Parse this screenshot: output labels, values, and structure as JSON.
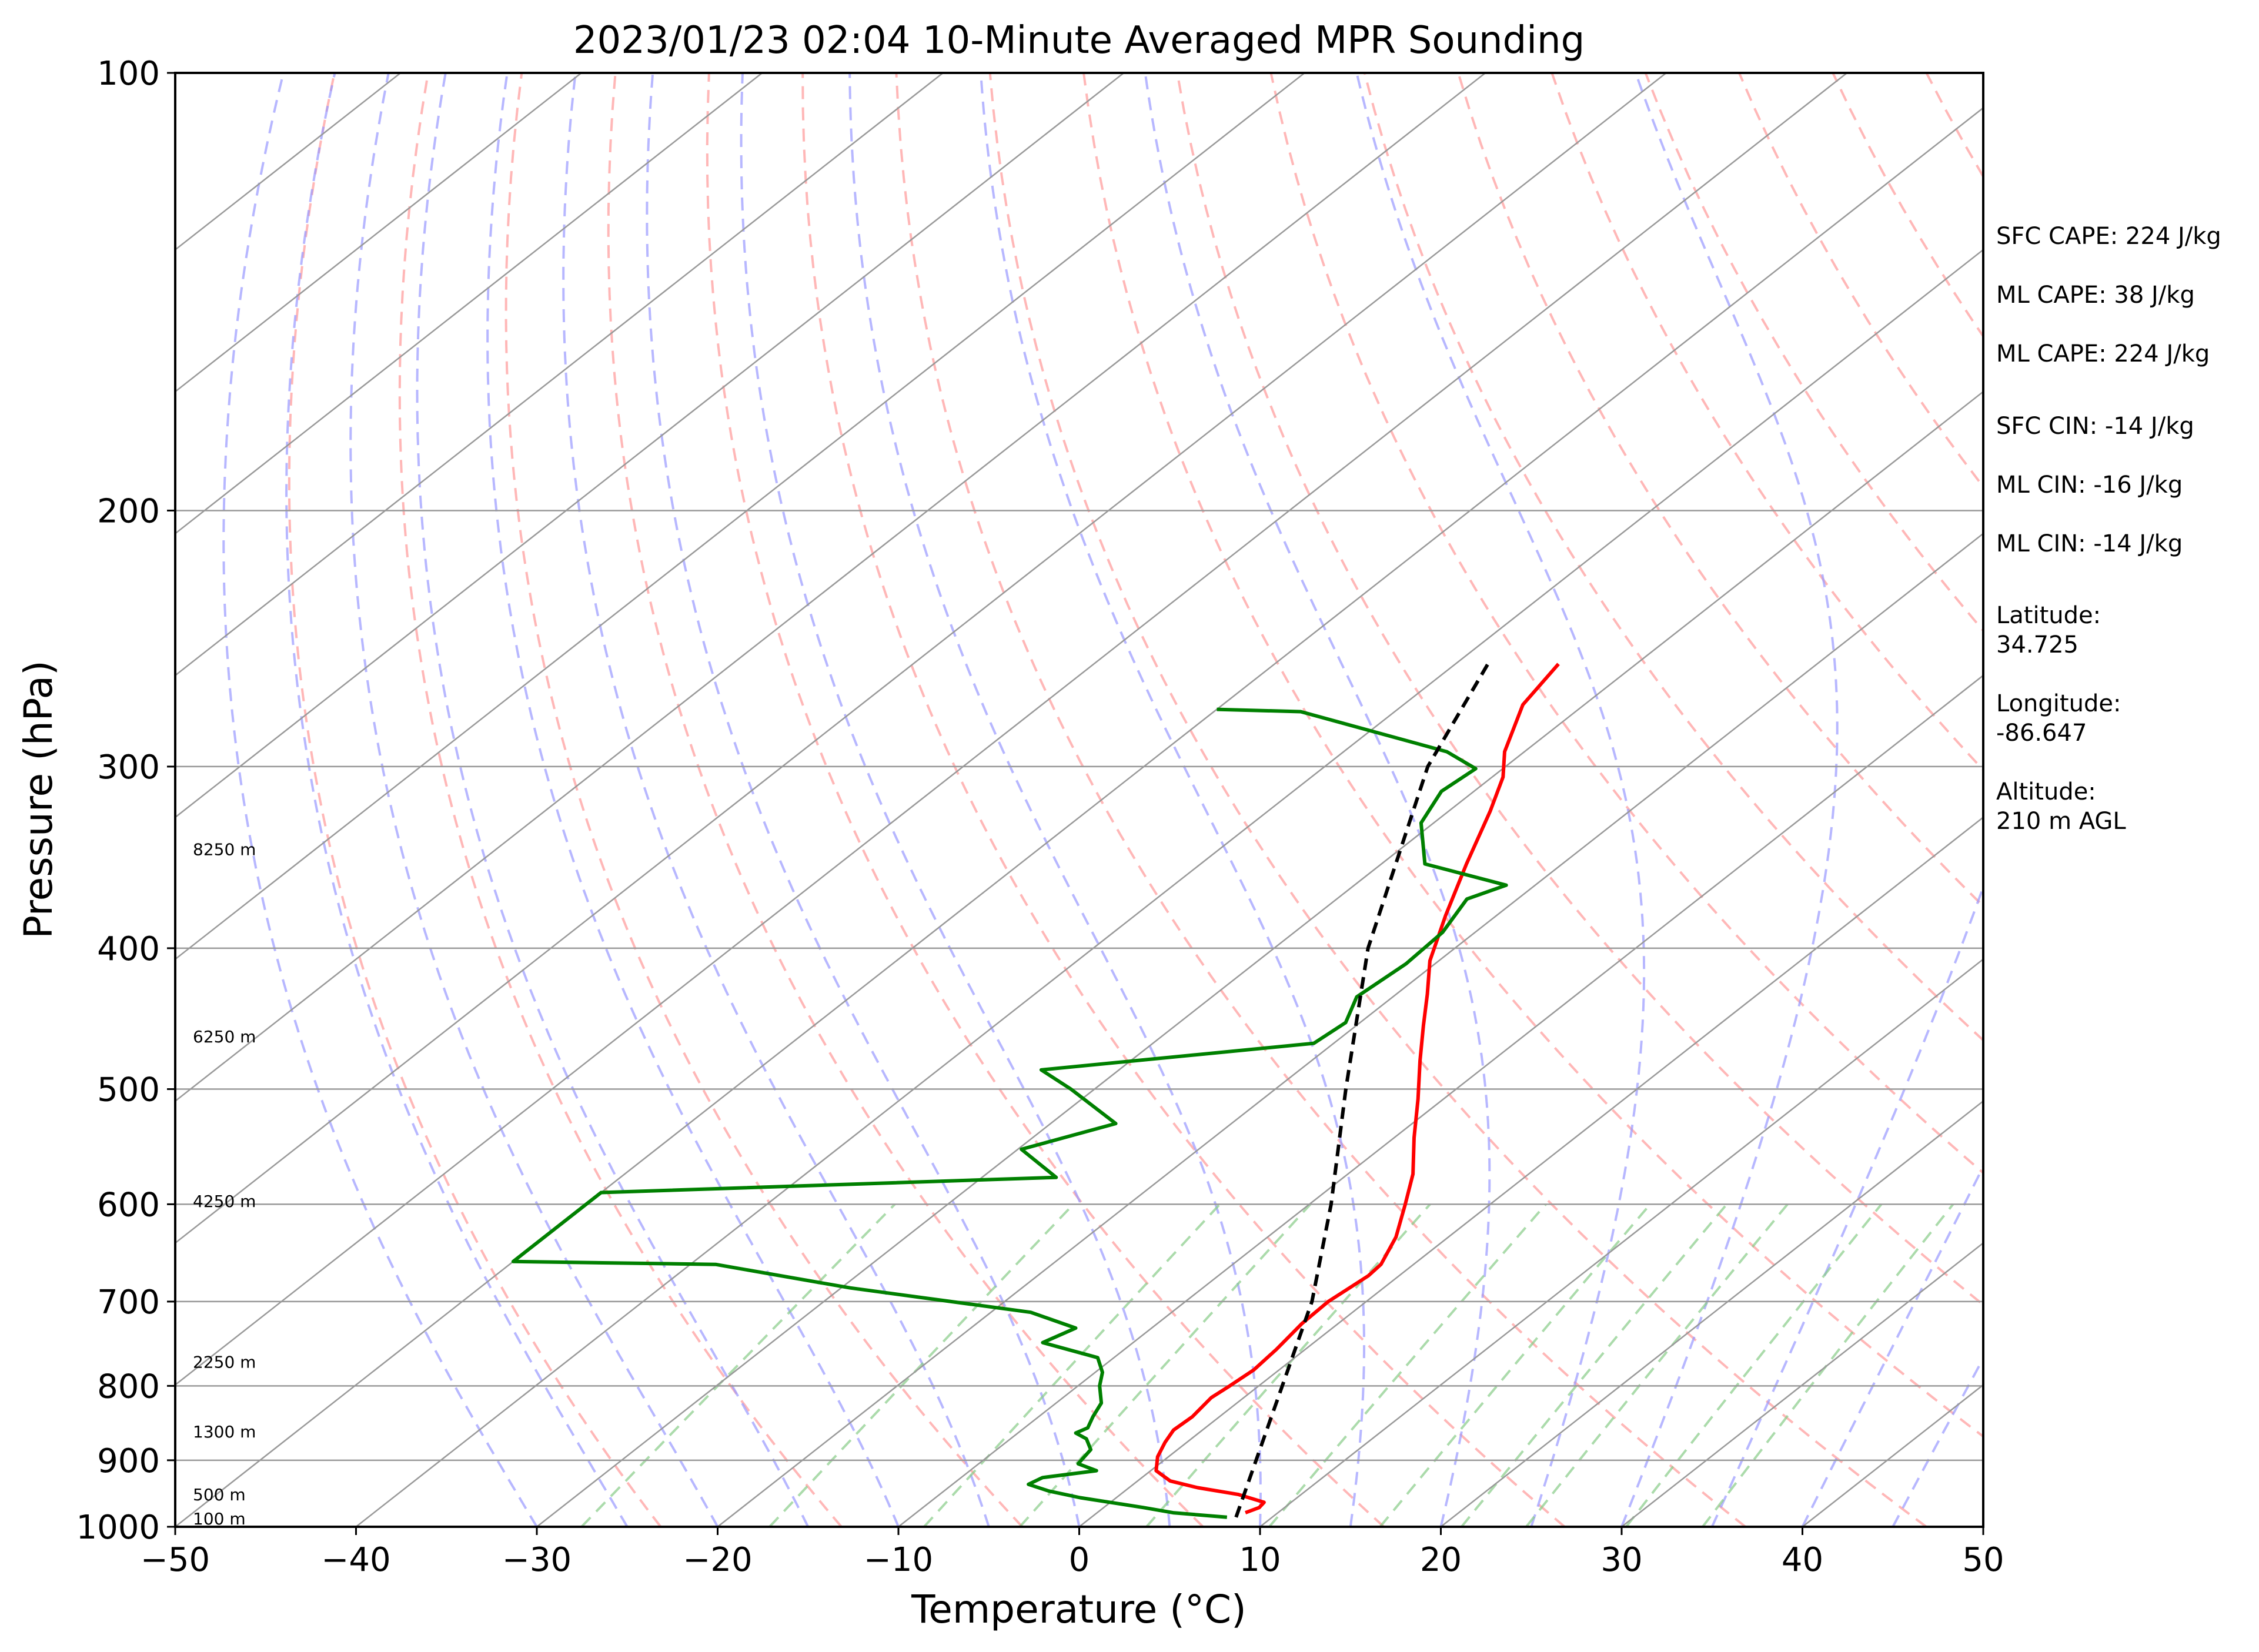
{
  "chart_data": {
    "type": "skew-t",
    "title": "2023/01/23 02:04 10-Minute Averaged MPR Sounding",
    "xlabel": "Temperature (°C)",
    "ylabel": "Pressure (hPa)",
    "xlim": [
      -50,
      50
    ],
    "ylim": [
      1000,
      100
    ],
    "y_scale": "log",
    "x_ticks": [
      "−50",
      "−40",
      "−30",
      "−20",
      "−10",
      "0",
      "10",
      "20",
      "30",
      "40",
      "50"
    ],
    "y_ticks": [
      {
        "p": 100,
        "label": "100"
      },
      {
        "p": 200,
        "label": "200"
      },
      {
        "p": 300,
        "label": "300"
      },
      {
        "p": 400,
        "label": "400"
      },
      {
        "p": 500,
        "label": "500"
      },
      {
        "p": 600,
        "label": "600"
      },
      {
        "p": 700,
        "label": "700"
      },
      {
        "p": 800,
        "label": "800"
      },
      {
        "p": 900,
        "label": "900"
      },
      {
        "p": 1000,
        "label": "1000"
      }
    ],
    "grid": true,
    "colors": {
      "temperature": "#ff0000",
      "dewpoint": "#008000",
      "parcel": "#000000",
      "dry_adiabat": "#ff9999",
      "moist_adiabat": "#9999ff",
      "mixing_ratio": "#88cc88",
      "isotherm": "#999999"
    },
    "series": [
      {
        "role": "temperature",
        "points": [
          [
            978,
            8.2
          ],
          [
            970,
            8.6
          ],
          [
            962,
            8.5
          ],
          [
            950,
            6.5
          ],
          [
            940,
            3.8
          ],
          [
            930,
            1.8
          ],
          [
            915,
            0.3
          ],
          [
            895,
            -0.6
          ],
          [
            875,
            -1.2
          ],
          [
            858,
            -1.6
          ],
          [
            840,
            -1.5
          ],
          [
            815,
            -1.8
          ],
          [
            800,
            -1.6
          ],
          [
            780,
            -1.4
          ],
          [
            755,
            -1.6
          ],
          [
            725,
            -2.0
          ],
          [
            700,
            -2.1
          ],
          [
            672,
            -1.7
          ],
          [
            660,
            -1.8
          ],
          [
            632,
            -2.9
          ],
          [
            600,
            -4.7
          ],
          [
            572,
            -6.4
          ],
          [
            540,
            -8.9
          ],
          [
            508,
            -11.4
          ],
          [
            478,
            -14.0
          ],
          [
            452,
            -16.3
          ],
          [
            430,
            -18.3
          ],
          [
            408,
            -20.5
          ],
          [
            380,
            -22.8
          ],
          [
            350,
            -25.3
          ],
          [
            322,
            -27.7
          ],
          [
            305,
            -29.4
          ],
          [
            293,
            -31.1
          ],
          [
            272,
            -33.4
          ],
          [
            255,
            -34.3
          ]
        ]
      },
      {
        "role": "dewpoint",
        "points": [
          [
            985,
            7.5
          ],
          [
            978,
            4.2
          ],
          [
            970,
            2.2
          ],
          [
            955,
            -2.0
          ],
          [
            945,
            -4.2
          ],
          [
            935,
            -5.8
          ],
          [
            925,
            -5.5
          ],
          [
            915,
            -3.0
          ],
          [
            905,
            -4.5
          ],
          [
            885,
            -4.8
          ],
          [
            870,
            -5.8
          ],
          [
            862,
            -6.8
          ],
          [
            855,
            -6.5
          ],
          [
            840,
            -7.0
          ],
          [
            822,
            -7.5
          ],
          [
            800,
            -8.8
          ],
          [
            783,
            -9.6
          ],
          [
            765,
            -10.9
          ],
          [
            747,
            -15.0
          ],
          [
            730,
            -14.2
          ],
          [
            712,
            -17.8
          ],
          [
            685,
            -29.5
          ],
          [
            660,
            -38.6
          ],
          [
            657,
            -50.0
          ],
          [
            589,
            -50.0
          ],
          [
            575,
            -25.9
          ],
          [
            550,
            -29.8
          ],
          [
            528,
            -26.4
          ],
          [
            500,
            -31.3
          ],
          [
            485,
            -34.3
          ],
          [
            465,
            -21.1
          ],
          [
            450,
            -20.8
          ],
          [
            432,
            -22.0
          ],
          [
            410,
            -21.6
          ],
          [
            390,
            -21.8
          ],
          [
            370,
            -22.8
          ],
          [
            362,
            -21.6
          ],
          [
            350,
            -27.6
          ],
          [
            328,
            -30.7
          ],
          [
            312,
            -31.8
          ],
          [
            301,
            -31.5
          ],
          [
            293,
            -34.3
          ],
          [
            275,
            -45.2
          ],
          [
            274,
            -50.0
          ]
        ]
      },
      {
        "role": "parcel",
        "points": [
          [
            985,
            8.0
          ],
          [
            700,
            -3.0
          ],
          [
            600,
            -8.8
          ],
          [
            500,
            -16.1
          ],
          [
            400,
            -24.8
          ],
          [
            300,
            -34.3
          ],
          [
            254,
            -38.3
          ]
        ]
      }
    ],
    "height_labels": [
      {
        "p": 987,
        "label": "100 m"
      },
      {
        "p": 950,
        "label": "500 m"
      },
      {
        "p": 860,
        "label": "1300 m"
      },
      {
        "p": 770,
        "label": "2250 m"
      },
      {
        "p": 597,
        "label": "4250 m"
      },
      {
        "p": 460,
        "label": "6250 m"
      },
      {
        "p": 342,
        "label": "8250 m"
      }
    ],
    "annotations": [
      {
        "key": "sfc_cape",
        "text": "SFC CAPE: 224 J/kg"
      },
      {
        "key": "ml_cape_1",
        "text": "ML CAPE: 38 J/kg"
      },
      {
        "key": "ml_cape_2",
        "text": "ML CAPE: 224 J/kg"
      },
      {
        "key": "sfc_cin",
        "text": "SFC CIN: -14 J/kg"
      },
      {
        "key": "ml_cin_1",
        "text": "ML CIN: -16 J/kg"
      },
      {
        "key": "ml_cin_2",
        "text": "ML CIN: -14 J/kg"
      },
      {
        "key": "lat_label",
        "text": "Latitude:"
      },
      {
        "key": "lat_value",
        "text": "34.725"
      },
      {
        "key": "lon_label",
        "text": "Longitude:"
      },
      {
        "key": "lon_value",
        "text": "-86.647"
      },
      {
        "key": "alt_label",
        "text": "Altitude:"
      },
      {
        "key": "alt_value",
        "text": "210 m AGL"
      }
    ]
  }
}
